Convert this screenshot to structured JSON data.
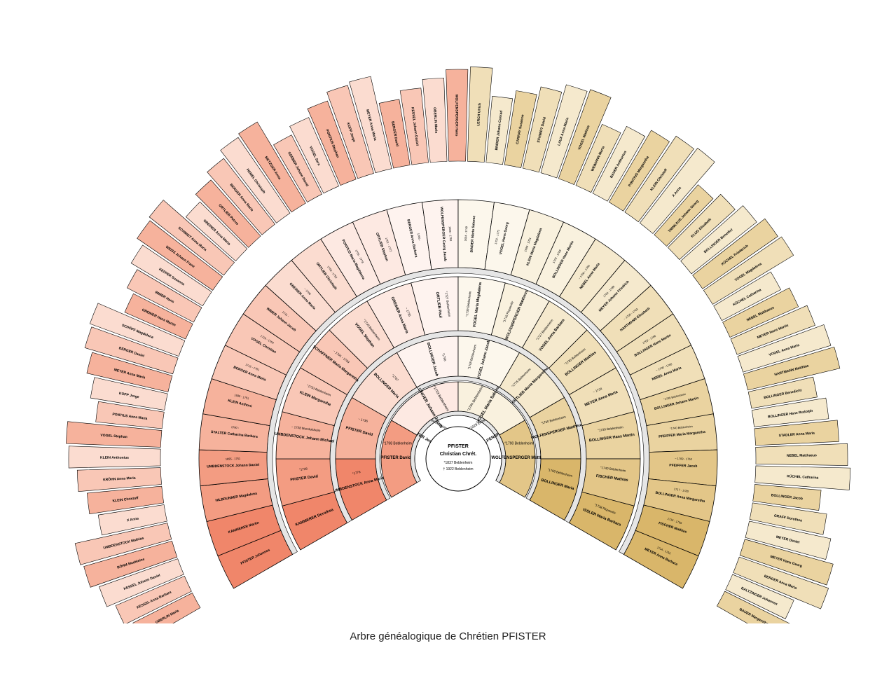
{
  "caption": "Arbre généalogique de Chrétien PFISTER",
  "colors": {
    "maternal": [
      "#f0866a",
      "#f39c82",
      "#f6b29c",
      "#f9c7b6",
      "#fbdcd0",
      "#fde9e2",
      "#fef3ef"
    ],
    "paternal": [
      "#d9b66a",
      "#e3c688",
      "#ead3a0",
      "#f0dfb8",
      "#f5e9cd",
      "#f9f1de",
      "#fcf7ec"
    ],
    "stroke": "#000000",
    "ring_band": "#e6e6e6"
  },
  "root": {
    "name": "PFISTER",
    "given": "Christian Chrét.",
    "birth": "°1837 Beblenheim",
    "death": "† 1922 Beblenheim"
  },
  "generations": [
    [
      {
        "name": "PFISTER Jean",
        "detail": "°1824 Beblenheim"
      },
      {
        "name": "WOLFENSPERGER",
        "detail": "°1829 Beblenheim"
      }
    ],
    [
      {
        "name": "PFISTER David",
        "detail": "°1798 Beblenheim"
      },
      {
        "name": "BOLLINGER Johann Jacob",
        "detail": "°1793 Beblenheim"
      },
      {
        "name": "VOGEL Maria Salome",
        "detail": "°1794 Beblenheim"
      },
      {
        "name": "WOLFENSPERGER Mattheus",
        "detail": "°1790 Beblenheim"
      }
    ],
    [
      {
        "name": "UMBDENSTOCK Anna Maria",
        "detail": "°1776"
      },
      {
        "name": "PFISTER David",
        "detail": "~ 1736"
      },
      {
        "name": "BOLLINGER Maria",
        "detail": "°1767"
      },
      {
        "name": "BOLLINGER Jacob",
        "detail": "°1766"
      },
      {
        "name": "VOGEL Johann Jacob",
        "detail": "°1768 Beblenheim"
      },
      {
        "name": "ORTLIEB Maria Margaretha",
        "detail": "°1776 Beblenheim"
      },
      {
        "name": "WOLFENSPERGER Mattheus",
        "detail": "°1760 Beblenheim"
      },
      {
        "name": "BOLLINGER Maria",
        "detail": "°1768 Beblenheim"
      }
    ],
    [
      {
        "name": "KAMMERER Dorothea",
        "detail": ""
      },
      {
        "name": "PFISTER David",
        "detail": "°1728"
      },
      {
        "name": "UMBDENSTOCK Johann Michael",
        "detail": "~ 1728 Mundolsheim"
      },
      {
        "name": "KLEIN Margaretha",
        "detail": "°1733 Beblenheim"
      },
      {
        "name": "SCHAFFNER Maria Margaretha",
        "detail": "~ 1701 - 1759"
      },
      {
        "name": "VOGEL Stephan",
        "detail": "°1749 Beblenheim"
      },
      {
        "name": "GREINER Anna Maria",
        "detail": "~ 1735"
      },
      {
        "name": "ORTLIEB Paul",
        "detail": "°1727 Beblenheim"
      },
      {
        "name": "VOGEL Maria Magdalena",
        "detail": "°1739 Beblenheim"
      },
      {
        "name": "WOLFENSPERGER Mattheus",
        "detail": "°1718 Riquewihr"
      },
      {
        "name": "VOGEL Anna Barbara",
        "detail": "°1727 Beblenheim"
      },
      {
        "name": "BOLLINGER Mathias",
        "detail": "°1735 Beblenheim"
      },
      {
        "name": "MEYER Anna Maria",
        "detail": "~ 1734"
      },
      {
        "name": "BOLLINGER Hans Martin",
        "detail": "°1739 Beblenheim"
      },
      {
        "name": "FISCHER Mathias",
        "detail": "°1740 Beblenheim"
      },
      {
        "name": "ISSLER Maria Barbara",
        "detail": "°1738 Riquewihr"
      }
    ],
    [
      {
        "name": "PFISTER Johannes",
        "detail": ""
      },
      {
        "name": "KAMMERER Martin",
        "detail": ""
      },
      {
        "name": "HILBRUNNER Magdalena",
        "detail": ""
      },
      {
        "name": "UMBDENSTOCK Johann Daniel",
        "detail": "1695 - 1751"
      },
      {
        "name": "STALTER Catharina Barbara",
        "detail": "1700 -"
      },
      {
        "name": "KLEIN Anthoni",
        "detail": "1695 - 1751"
      },
      {
        "name": "BERGER Anna Maria",
        "detail": "1712 - 1761"
      },
      {
        "name": "VOGEL Christian",
        "detail": "1719 - 1764"
      },
      {
        "name": "IMMER Johann Jacob",
        "detail": "1711 -"
      },
      {
        "name": "GREINER Anna Maria",
        "detail": "~ 1706"
      },
      {
        "name": "ORTLIEB Christoph",
        "detail": "1708 - 1750"
      },
      {
        "name": "PONTIUS Maria Magdalena",
        "detail": "1706 - 1778"
      },
      {
        "name": "ORTLIEB Stephan",
        "detail": "1701 - 1772"
      },
      {
        "name": "BERGER Anna Barbara",
        "detail": "1706 -"
      },
      {
        "name": "WOLFENSPERGER Georg Jacob",
        "detail": "1685 - 1753"
      },
      {
        "name": "BINDER Maria Salome",
        "detail": "1694 - 1749"
      },
      {
        "name": "VOGEL Hans Georg",
        "detail": "1702 - 1772"
      },
      {
        "name": "KLEIN Maria Magdalena",
        "detail": "1698 - 1751"
      },
      {
        "name": "BOLLINGER Hans Martin",
        "detail": "1702 - 1768"
      },
      {
        "name": "NEBEL Anna Maria",
        "detail": "~ 1700 - 1760"
      },
      {
        "name": "MEYER Johann Friedrich",
        "detail": "1704 - 1789"
      },
      {
        "name": "HARTMANN Elisabeth",
        "detail": "~ 1700 - 1763"
      },
      {
        "name": "BOLLINGER Hans Martin",
        "detail": "1702 - 1766"
      },
      {
        "name": "NEBEL Anna Maria",
        "detail": "~ 1700 - 1760"
      },
      {
        "name": "BOLLINGER Johann Martin",
        "detail": "°1739 Beblenheim"
      },
      {
        "name": "PFEIFFER Maria Margaretha",
        "detail": "°1740 Beblenheim"
      },
      {
        "name": "PFEIFFER Jacob",
        "detail": "~ 1709 - 1752"
      },
      {
        "name": "BOLLINGER Anna Margaretha",
        "detail": "1717 - 1780"
      },
      {
        "name": "FISCHER Mathias",
        "detail": "1715 - 1765"
      },
      {
        "name": "MEYER Anna Barbara",
        "detail": "1714 - 1752"
      }
    ]
  ],
  "outer_names": [
    "OBERLIN Maria",
    "KESSEL Anna Barbara",
    "KESSEL Johann Daniel",
    "BÖHM Madeleine",
    "UMBDENSTOCK Mathias",
    "X Anna",
    "KLEIN Christoff",
    "KRÖHN Anna Maria",
    "KLEIN Anthonius",
    "VOGEL Stephan",
    "PONTIUS Anna Maria",
    "KOPP Jorge",
    "MEYER Anna Maria",
    "BERGER Daniel",
    "SCHÖPF Magdalena",
    "GREINER Hans Martin",
    "IMMER Hans",
    "KEFFER Susanna",
    "WEISS Johann Franz",
    "SCHMIDT Anna Maria",
    "GREINER Anna Maria",
    "ORTLIEB Petrus",
    "BERGER Anna Maria",
    "HEMEL Christoph",
    "METZGER Anna",
    "GERBER Johann David",
    "VOGEL Sara",
    "PONTIUS Stephan",
    "KOPP Jorge",
    "MEYER Anna Maria",
    "BERGER David",
    "KESSEL Johann Daniel",
    "OBERLIN Maria",
    "WOLFENSPERGER Hans",
    "LERCH Ulrich",
    "BINDER Johann Conrad",
    "CARRAY Susanne",
    "SCHMIDT David",
    "LAUX Anna Maria",
    "VOGEL Mathias",
    "WEIMANN Maria",
    "BAUER Anthonius",
    "PONTIUS Margaretha",
    "KLEIN Christoff",
    "X Anna",
    "TRINKAUS Johann Georg",
    "KLUG Elisabeth",
    "BOLLINGER Benedict",
    "KÜCHEL Friederich",
    "VOGEL Magdalena",
    "KÜCHEL Catharina",
    "NEBEL Matthaeus",
    "MEYER Hans Martin",
    "VOGEL Anna Maria",
    "HARTMANN Matthias",
    "BOLLINGER Benedicht",
    "BOLLINGER Hans Rudolph",
    "STADLER Anna Maria",
    "NEBEL Matthaeus",
    "KÜCHEL Catharina",
    "BOLLINGER Jacob",
    "GRAFF Dorothea",
    "MEYER Daniel",
    "MEYER Hans Georg",
    "BERGER Anna Maria",
    "BALTZINGER Johannes",
    "BAUER Margaretha"
  ]
}
